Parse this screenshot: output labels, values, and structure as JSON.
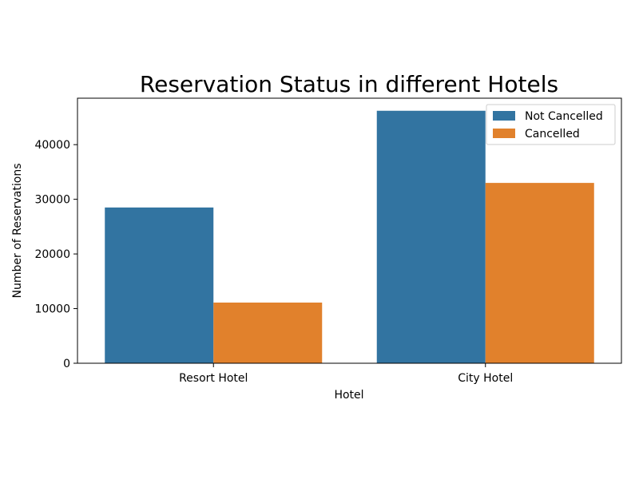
{
  "chart_data": {
    "type": "bar",
    "title": "Reservation Status in different Hotels",
    "xlabel": "Hotel",
    "ylabel": "Number of Reservations",
    "categories": [
      "Resort Hotel",
      "City Hotel"
    ],
    "series": [
      {
        "name": "Not Cancelled",
        "color": "#3274a1",
        "values": [
          28500,
          46200
        ]
      },
      {
        "name": "Cancelled",
        "color": "#e1812c",
        "values": [
          11100,
          33000
        ]
      }
    ],
    "ylim": [
      0,
      48500
    ],
    "yticks": [
      0,
      10000,
      20000,
      30000,
      40000
    ],
    "ytick_labels": [
      "0",
      "10000",
      "20000",
      "30000",
      "40000"
    ],
    "grid": false,
    "legend_position": "top-right"
  }
}
